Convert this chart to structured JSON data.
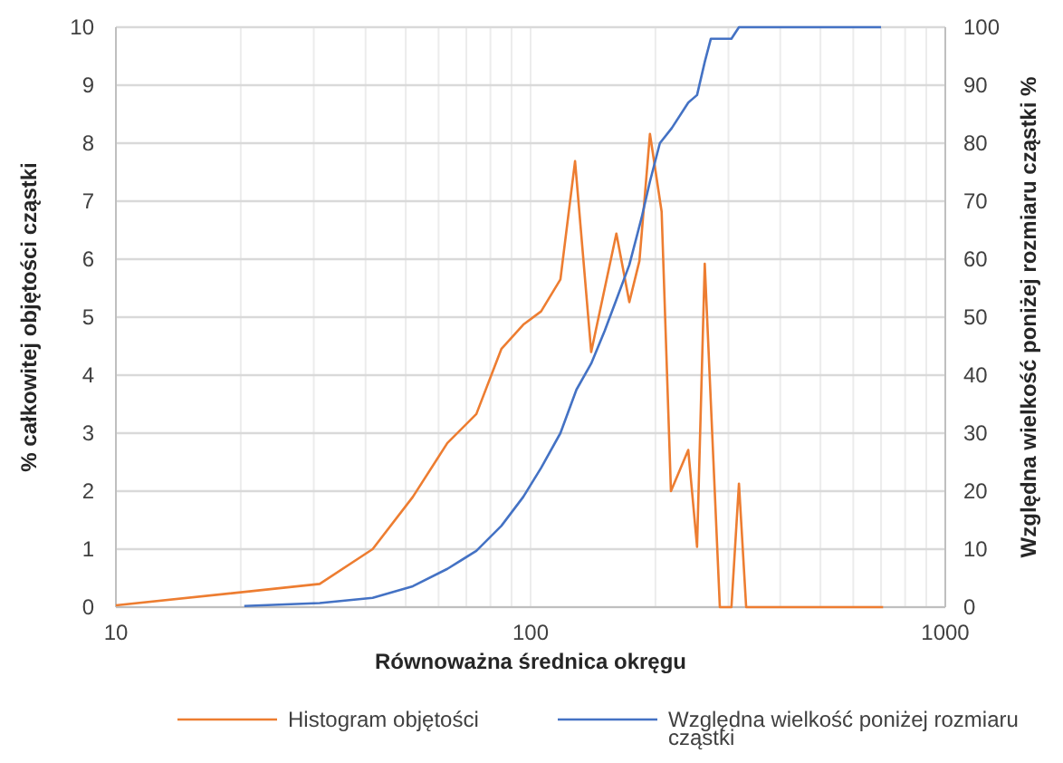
{
  "chart_data": {
    "type": "line",
    "xlabel": "Równoważna średnica okręgu",
    "ylabel": "% całkowitej objętości cząstki",
    "y2label": "Względna wielkość poniżej rozmiaru cząstki %",
    "log": "x",
    "grid": true,
    "legend": "bottom",
    "marker": "none",
    "line_style": "solid",
    "xlim": [
      10,
      1000
    ],
    "xticks": [
      10,
      {
        "value": 20,
        "label": null
      },
      {
        "value": 30,
        "label": null
      },
      {
        "value": 40,
        "label": null
      },
      {
        "value": 50,
        "label": null
      },
      {
        "value": 60,
        "label": null
      },
      {
        "value": 70,
        "label": null
      },
      {
        "value": 80,
        "label": null
      },
      {
        "value": 90,
        "label": null
      },
      100,
      {
        "value": 200,
        "label": null
      },
      {
        "value": 300,
        "label": null
      },
      {
        "value": 400,
        "label": null
      },
      {
        "value": 500,
        "label": null
      },
      {
        "value": 600,
        "label": null
      },
      {
        "value": 700,
        "label": null
      },
      {
        "value": 800,
        "label": null
      },
      {
        "value": 900,
        "label": null
      },
      1000
    ],
    "ylim": [
      0,
      10
    ],
    "yticks": [
      0,
      1,
      2,
      3,
      4,
      5,
      6,
      7,
      8,
      9,
      10
    ],
    "y2lim": [
      0,
      100
    ],
    "y2ticks": [
      0,
      10,
      20,
      30,
      40,
      50,
      60,
      70,
      80,
      90,
      100
    ],
    "series": [
      {
        "name": "Histogram objętości",
        "color": "#ed7d31",
        "x": [
          10,
          31,
          41.6,
          52,
          63,
          74,
          85,
          96,
          106,
          118,
          128,
          140,
          161,
          173,
          183,
          194,
          207,
          218,
          240,
          252,
          263,
          286,
          305,
          318,
          331,
          708
        ],
        "values": [
          0.03,
          0.4,
          1.0,
          1.9,
          2.83,
          3.33,
          4.45,
          4.87,
          5.1,
          5.65,
          7.69,
          4.4,
          6.44,
          5.26,
          5.97,
          8.16,
          6.82,
          2.0,
          2.71,
          1.04,
          5.92,
          0,
          0,
          2.13,
          0,
          0
        ]
      },
      {
        "name": "Względna wielkość poniżej rozmiaru cząstki",
        "color": "#4472c4",
        "axis": "y2",
        "x": [
          20.4,
          31,
          41.6,
          52,
          63,
          74,
          85,
          96,
          106,
          118,
          129,
          140,
          151,
          161,
          173,
          185,
          194,
          205,
          219,
          240,
          252,
          263,
          272,
          305,
          318,
          700
        ],
        "values": [
          0.2,
          0.7,
          1.6,
          3.6,
          6.6,
          9.7,
          14,
          19,
          24,
          30,
          37.5,
          42,
          47.7,
          53,
          59,
          67,
          73.4,
          80,
          82.6,
          87,
          88.3,
          94,
          98,
          98,
          100,
          100
        ]
      }
    ]
  }
}
